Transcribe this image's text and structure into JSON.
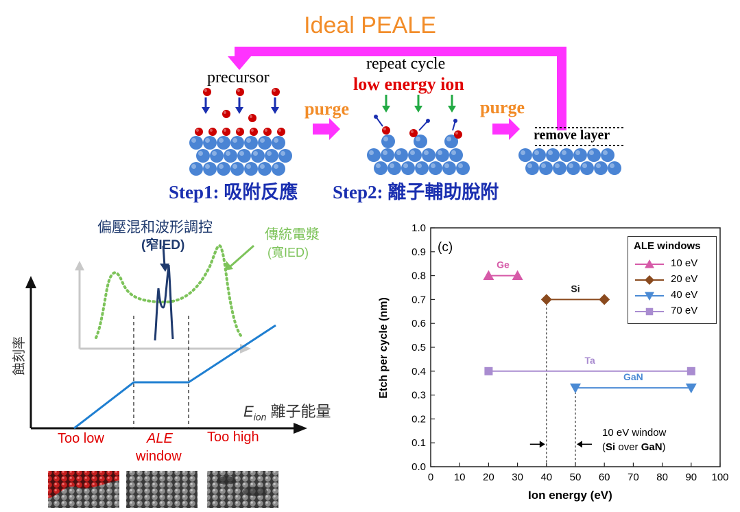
{
  "colors": {
    "title": "#f28c28",
    "loop_arrow": "#ff33ff",
    "purge_text": "#f28c28",
    "purge_arrow": "#ff33ff",
    "step_text": "#1a2fb0",
    "red_label": "#e00000",
    "atom_blue": "#4a84d4",
    "precursor_red": "#cc0000",
    "down_arrow_blue": "#1a2fb0",
    "ion_green": "#22aa44",
    "ied_narrow": "#1f3a6e",
    "ied_broad": "#7dc35a",
    "etch_line": "#1f7fd1",
    "window_label_red": "#e00000"
  },
  "top": {
    "title": "Ideal PEALE",
    "precursor": "precursor",
    "repeat_cycle": "repeat cycle",
    "low_energy_ion": "low energy ion",
    "purge1": "purge",
    "purge2": "purge",
    "remove_layer": "remove layer",
    "step1": "Step1: 吸附反應",
    "step2": "Step2: 離子輔助脫附"
  },
  "left_plot": {
    "narrow_label_line1": "偏壓混和波形調控",
    "narrow_label_line2": "(窄IED)",
    "broad_label_line1": "傳統電漿",
    "broad_label_line2": "(寬IED)",
    "ylabel": "蝕刻率",
    "xlabel_sym": "E",
    "xlabel_sub": "ion",
    "xlabel_text": " 離子能量",
    "too_low": "Too low",
    "ale_1": "ALE",
    "ale_2": "window",
    "too_high": "Too high"
  },
  "chart_data": {
    "type": "scatter",
    "panel_label": "(c)",
    "xlabel": "Ion energy (eV)",
    "ylabel": "Etch per cycle (nm)",
    "xlim": [
      0,
      100
    ],
    "ylim": [
      0,
      1.0
    ],
    "xticks": [
      0,
      10,
      20,
      30,
      40,
      50,
      60,
      70,
      80,
      90,
      100
    ],
    "yticks": [
      0.0,
      0.1,
      0.2,
      0.3,
      0.4,
      0.5,
      0.6,
      0.7,
      0.8,
      0.9,
      1.0
    ],
    "grid": false,
    "legend_title": "ALE windows",
    "legend_position": "top-right",
    "legend": [
      {
        "label": "10 eV",
        "marker": "triangle-up",
        "color": "#d65aa8"
      },
      {
        "label": "20 eV",
        "marker": "diamond",
        "color": "#8a4a1e"
      },
      {
        "label": "40 eV",
        "marker": "triangle-down",
        "color": "#4a8ad4"
      },
      {
        "label": "70 eV",
        "marker": "square",
        "color": "#a98cd0"
      }
    ],
    "series": [
      {
        "name": "Ge",
        "x": [
          20,
          30
        ],
        "y": [
          0.8,
          0.8
        ],
        "marker": "triangle-up",
        "color": "#d65aa8"
      },
      {
        "name": "Si",
        "x": [
          40,
          60
        ],
        "y": [
          0.7,
          0.7
        ],
        "marker": "diamond",
        "color": "#8a4a1e"
      },
      {
        "name": "Ta",
        "x": [
          20,
          90
        ],
        "y": [
          0.4,
          0.4
        ],
        "marker": "square",
        "color": "#a98cd0"
      },
      {
        "name": "GaN",
        "x": [
          50,
          90
        ],
        "y": [
          0.33,
          0.33
        ],
        "marker": "triangle-down",
        "color": "#4a8ad4"
      }
    ],
    "annotation_line1": "10 eV window",
    "annotation_line2_pre": "(",
    "annotation_line2_b1": "Si",
    "annotation_line2_mid": " over ",
    "annotation_line2_b2": "GaN",
    "annotation_line2_post": ")",
    "guide_x": [
      40,
      50
    ]
  }
}
